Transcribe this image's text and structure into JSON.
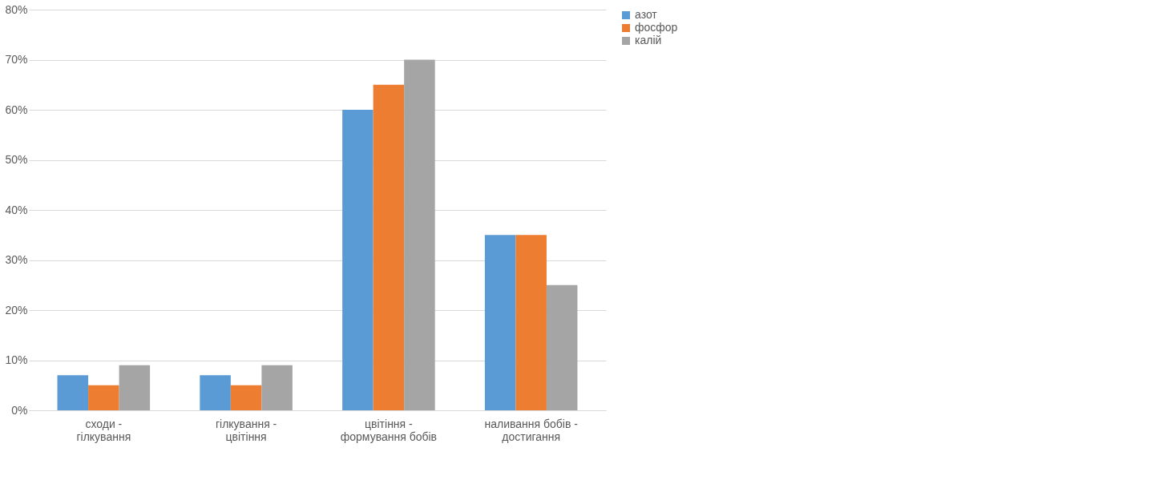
{
  "chart_data": {
    "type": "bar",
    "categories": [
      "сходи - гілкування",
      "гілкування - цвітіння",
      "цвітіння - формування бобів",
      "наливання бобів - достигання"
    ],
    "series": [
      {
        "name": "азот",
        "color": "#5b9bd5",
        "values": [
          7,
          7,
          60,
          35
        ]
      },
      {
        "name": "фосфор",
        "color": "#ed7d31",
        "values": [
          5,
          5,
          65,
          35
        ]
      },
      {
        "name": "калій",
        "color": "#a5a5a5",
        "values": [
          9,
          9,
          70,
          25
        ]
      }
    ],
    "ylim": [
      0,
      80
    ],
    "yticks": [
      {
        "value": 0,
        "label": "0%"
      },
      {
        "value": 10,
        "label": "10%"
      },
      {
        "value": 20,
        "label": "20%"
      },
      {
        "value": 30,
        "label": "30%"
      },
      {
        "value": 40,
        "label": "40%"
      },
      {
        "value": 50,
        "label": "50%"
      },
      {
        "value": 60,
        "label": "60%"
      },
      {
        "value": 70,
        "label": "70%"
      },
      {
        "value": 80,
        "label": "80%"
      }
    ],
    "grid": "y",
    "legend": "right"
  }
}
